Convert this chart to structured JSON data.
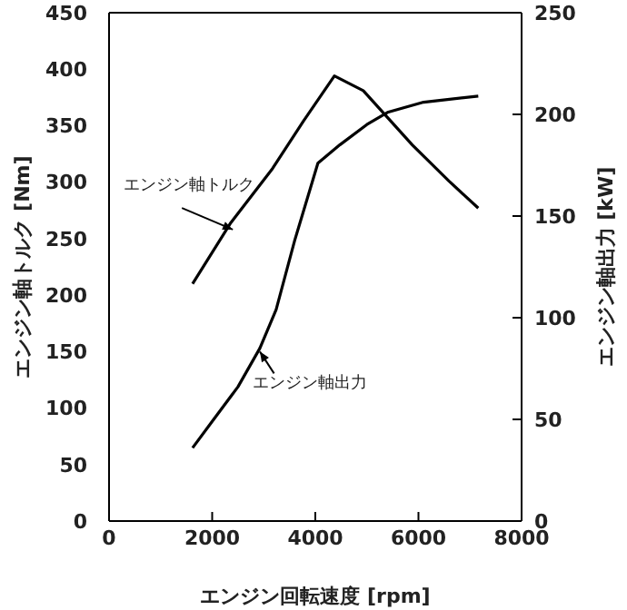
{
  "chart_data": {
    "type": "line",
    "xlabel": "エンジン回転速度 [rpm]",
    "ylabel": "エンジン軸トルク [Nm]",
    "y2label": "エンジン軸出力 [kW]",
    "xlim": [
      0,
      8000
    ],
    "xticks": [
      0,
      2000,
      4000,
      6000,
      8000
    ],
    "ylim": [
      0,
      450
    ],
    "yticks": [
      0,
      50,
      100,
      150,
      200,
      250,
      300,
      350,
      400,
      450
    ],
    "y2lim": [
      0,
      250
    ],
    "y2ticks": [
      0,
      50,
      100,
      150,
      200,
      250
    ],
    "series": [
      {
        "color": "#000000",
        "x": [
          1620,
          2360,
          3170,
          3770,
          4370,
          4930,
          5880,
          6590,
          7160
        ],
        "values": [
          210,
          264,
          312,
          354,
          394,
          381,
          333,
          301,
          277
        ]
      },
      {
        "color": "#000000",
        "axis": "y2",
        "x": [
          1620,
          2000,
          2500,
          2925,
          3240,
          3600,
          4050,
          4475,
          5000,
          5400,
          6100,
          7160
        ],
        "values": [
          36,
          49,
          66,
          85,
          104,
          138,
          176,
          185,
          195,
          201,
          206,
          209
        ]
      }
    ],
    "annotations": [
      {
        "text": "エンジン軸トルク",
        "x": 2400,
        "y": 258
      },
      {
        "text": "エンジン軸出力",
        "x": 2925,
        "y": 150
      }
    ],
    "marker": "none",
    "line_style": "solid"
  }
}
